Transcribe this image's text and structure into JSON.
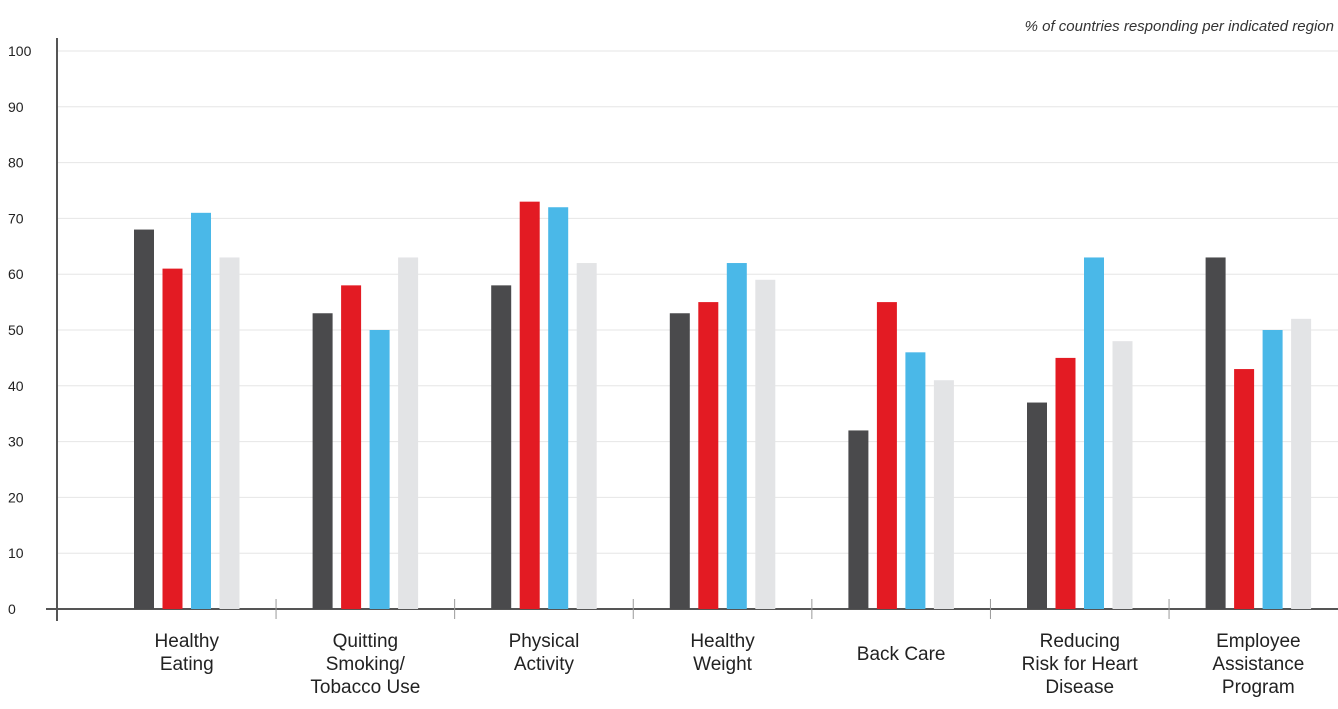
{
  "note": "% of countries responding per indicated region",
  "chart_data": {
    "type": "bar",
    "categories": [
      [
        "Healthy",
        "Eating"
      ],
      [
        "Quitting",
        "Smoking/",
        "Tobacco Use"
      ],
      [
        "Physical",
        "Activity"
      ],
      [
        "Healthy",
        "Weight"
      ],
      [
        "Back Care"
      ],
      [
        "Reducing",
        "Risk for Heart",
        "Disease"
      ],
      [
        "Employee",
        "Assistance",
        "Program"
      ]
    ],
    "series": [
      {
        "color": "#4a4a4c",
        "values": [
          68,
          53,
          58,
          53,
          32,
          37,
          63
        ]
      },
      {
        "color": "#e31b23",
        "values": [
          61,
          58,
          73,
          55,
          55,
          45,
          43
        ]
      },
      {
        "color": "#4ab8e8",
        "values": [
          71,
          50,
          72,
          62,
          46,
          63,
          50
        ]
      },
      {
        "color": "#e3e4e6",
        "values": [
          63,
          63,
          62,
          59,
          41,
          48,
          52
        ]
      }
    ],
    "ylim": [
      0,
      100
    ],
    "yticks": [
      0,
      10,
      20,
      30,
      40,
      50,
      60,
      70,
      80,
      90,
      100
    ],
    "grid": true,
    "legend": "none"
  }
}
